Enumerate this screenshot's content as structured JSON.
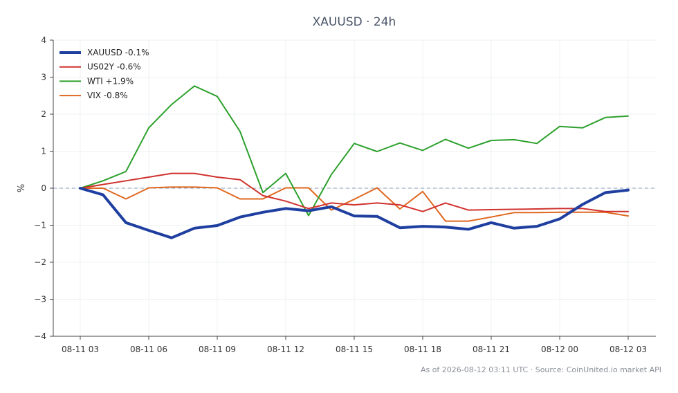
{
  "chart_data": {
    "type": "line",
    "title": "XAUUSD · 24h",
    "xlabel": "",
    "ylabel": "%",
    "ylim": [
      -4,
      4
    ],
    "yticks": [
      -4,
      -3,
      -2,
      -1,
      0,
      1,
      2,
      3,
      4
    ],
    "ytick_labels": [
      "−4",
      "−3",
      "−2",
      "−1",
      "0",
      "1",
      "2",
      "3",
      "4"
    ],
    "x": [
      "08-11 03",
      "08-11 04",
      "08-11 05",
      "08-11 06",
      "08-11 07",
      "08-11 08",
      "08-11 09",
      "08-11 10",
      "08-11 11",
      "08-11 12",
      "08-11 13",
      "08-11 14",
      "08-11 15",
      "08-11 16",
      "08-11 17",
      "08-11 18",
      "08-11 19",
      "08-11 20",
      "08-11 21",
      "08-11 22",
      "08-11 23",
      "08-12 00",
      "08-12 01",
      "08-12 02",
      "08-12 03"
    ],
    "xticks": [
      "08-11 03",
      "08-11 06",
      "08-11 09",
      "08-11 12",
      "08-11 15",
      "08-11 18",
      "08-11 21",
      "08-12 00",
      "08-12 03"
    ],
    "grid": true,
    "zero_line": true,
    "legend_position": "top-left",
    "series": [
      {
        "name": "XAUUSD -0.1%",
        "color": "#1f3fa0",
        "values": [
          0,
          -0.18,
          -0.93,
          -1.14,
          -1.34,
          -1.08,
          -1.01,
          -0.78,
          -0.65,
          -0.55,
          -0.61,
          -0.5,
          -0.75,
          -0.76,
          -1.07,
          -1.03,
          -1.05,
          -1.11,
          -0.93,
          -1.08,
          -1.03,
          -0.83,
          -0.44,
          -0.12,
          -0.05
        ]
      },
      {
        "name": "US02Y -0.6%",
        "color": "#d0312d",
        "values": [
          0,
          0.1,
          0.2,
          0.3,
          0.4,
          0.4,
          0.3,
          0.23,
          -0.2,
          -0.35,
          -0.55,
          -0.4,
          -0.45,
          -0.4,
          -0.45,
          -0.63,
          -0.4,
          -0.59,
          -0.58,
          -0.57,
          -0.56,
          -0.55,
          -0.55,
          -0.63,
          -0.63
        ]
      },
      {
        "name": "WTI +1.9%",
        "color": "#2ca02c",
        "values": [
          0,
          0.2,
          0.45,
          1.63,
          2.26,
          2.76,
          2.48,
          1.53,
          -0.12,
          0.4,
          -0.74,
          0.37,
          1.21,
          0.99,
          1.22,
          1.02,
          1.32,
          1.08,
          1.29,
          1.31,
          1.21,
          1.67,
          1.63,
          1.91,
          1.95
        ]
      },
      {
        "name": "VIX -0.8%",
        "color": "#e0661d",
        "values": [
          0,
          0,
          -0.29,
          0.01,
          0.03,
          0.03,
          0.01,
          -0.29,
          -0.29,
          0.01,
          0.01,
          -0.59,
          -0.3,
          0.01,
          -0.56,
          -0.09,
          -0.89,
          -0.89,
          -0.78,
          -0.66,
          -0.66,
          -0.65,
          -0.65,
          -0.65,
          -0.75
        ]
      }
    ],
    "footnote": "As of 2026-08-12 03:11 UTC · Source: CoinUnited.io market API"
  }
}
